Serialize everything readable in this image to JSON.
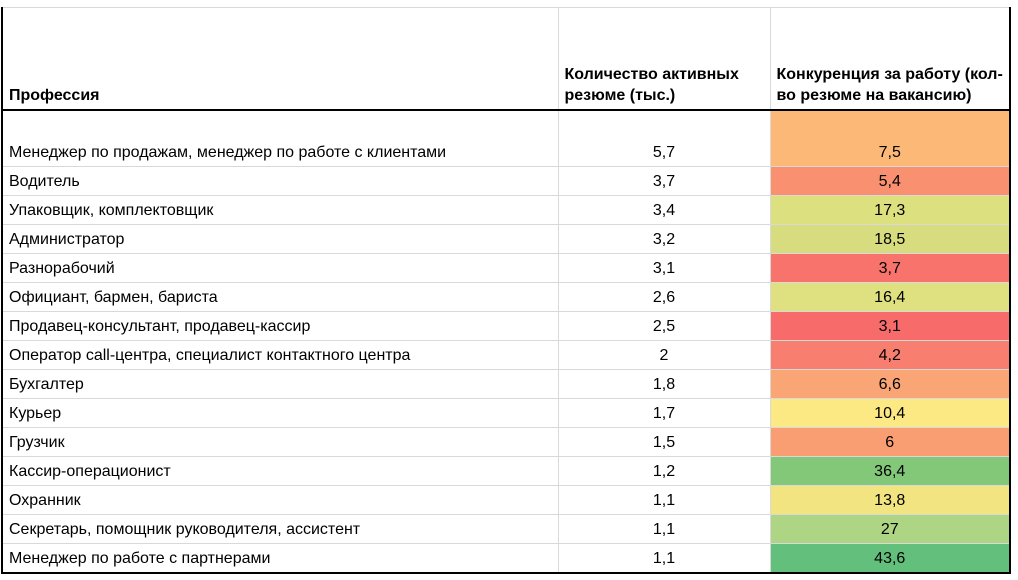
{
  "chart_data": {
    "type": "table",
    "columns": [
      "Профессия",
      "Количество активных резюме (тыс.)",
      "Конкуренция за работу (кол-во резюме на вакансию)"
    ],
    "rows": [
      {
        "profession": "Менеджер по продажам, менеджер по работе с клиентами",
        "active_resumes_thousands": "5,7",
        "competition_per_vacancy": "7,5",
        "competition_color": "#fbb877"
      },
      {
        "profession": "Водитель",
        "active_resumes_thousands": "3,7",
        "competition_per_vacancy": "5,4",
        "competition_color": "#f9906f"
      },
      {
        "profession": "Упаковщик, комплектовщик",
        "active_resumes_thousands": "3,4",
        "competition_per_vacancy": "17,3",
        "competition_color": "#dce07f"
      },
      {
        "profession": "Администратор",
        "active_resumes_thousands": "3,2",
        "competition_per_vacancy": "18,5",
        "competition_color": "#d7dd7e"
      },
      {
        "profession": "Разнорабочий",
        "active_resumes_thousands": "3,1",
        "competition_per_vacancy": "3,7",
        "competition_color": "#f8736c"
      },
      {
        "profession": "Официант, бармен, бариста",
        "active_resumes_thousands": "2,6",
        "competition_per_vacancy": "16,4",
        "competition_color": "#dfe180"
      },
      {
        "profession": "Продавец-консультант, продавец-кассир",
        "active_resumes_thousands": "2,5",
        "competition_per_vacancy": "3,1",
        "competition_color": "#f76b6b"
      },
      {
        "profession": "Оператор call-центра, специалист контактного центра",
        "active_resumes_thousands": "2",
        "competition_per_vacancy": "4,2",
        "competition_color": "#f87e70"
      },
      {
        "profession": "Бухгалтер",
        "active_resumes_thousands": "1,8",
        "competition_per_vacancy": "6,6",
        "competition_color": "#faa576"
      },
      {
        "profession": "Курьер",
        "active_resumes_thousands": "1,7",
        "competition_per_vacancy": "10,4",
        "competition_color": "#fce983"
      },
      {
        "profession": "Грузчик",
        "active_resumes_thousands": "1,5",
        "competition_per_vacancy": "6",
        "competition_color": "#f99d73"
      },
      {
        "profession": "Кассир-операционист",
        "active_resumes_thousands": "1,2",
        "competition_per_vacancy": "36,4",
        "competition_color": "#82c878"
      },
      {
        "profession": "Охранник",
        "active_resumes_thousands": "1,1",
        "competition_per_vacancy": "13,8",
        "competition_color": "#f2e581"
      },
      {
        "profession": "Секретарь, помощник руководителя, ассистент",
        "active_resumes_thousands": "1,1",
        "competition_per_vacancy": "27",
        "competition_color": "#aed584"
      },
      {
        "profession": "Менеджер по работе с партнерами",
        "active_resumes_thousands": "1,1",
        "competition_per_vacancy": "43,6",
        "competition_color": "#62c07c"
      }
    ],
    "legend_position": "none",
    "grid": "light-gray-inner-lines",
    "colors": {
      "scale_low_red": "#f76b6b",
      "scale_mid_yellow": "#fce983",
      "scale_high_green": "#62c07c",
      "grid_line": "#d9d9d9",
      "outer_border": "#000000",
      "text": "#000000",
      "background": "#ffffff"
    }
  }
}
